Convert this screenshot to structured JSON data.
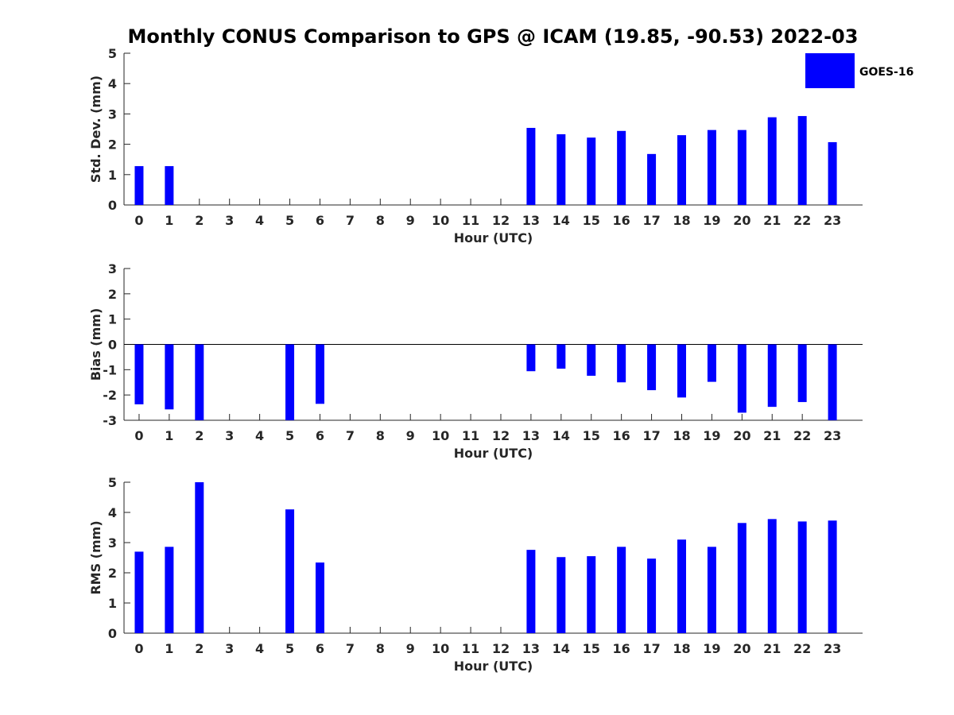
{
  "title": "Monthly CONUS Comparison to GPS @ ICAM (19.85, -90.53) 2022-03",
  "legend": {
    "label": "GOES-16",
    "color": "#0000ff",
    "placement": "top-right"
  },
  "chart_data": [
    {
      "type": "bar",
      "xlabel": "Hour (UTC)",
      "ylabel": "Std. Dev. (mm)",
      "ylim": [
        0,
        5
      ],
      "yticks": [
        "0",
        "1",
        "2",
        "3",
        "4",
        "5"
      ],
      "categories": [
        "0",
        "1",
        "2",
        "3",
        "4",
        "5",
        "6",
        "7",
        "8",
        "9",
        "10",
        "11",
        "12",
        "13",
        "14",
        "15",
        "16",
        "17",
        "18",
        "19",
        "20",
        "21",
        "22",
        "23"
      ],
      "series": [
        {
          "name": "GOES-16",
          "color": "#0000ff",
          "values": [
            1.28,
            1.28,
            null,
            null,
            null,
            null,
            null,
            null,
            null,
            null,
            null,
            null,
            null,
            2.54,
            2.33,
            2.22,
            2.44,
            1.68,
            2.3,
            2.47,
            2.47,
            2.89,
            2.93,
            2.07
          ]
        }
      ],
      "grid": false
    },
    {
      "type": "bar",
      "xlabel": "Hour (UTC)",
      "ylabel": "Bias (mm)",
      "ylim": [
        -3,
        3
      ],
      "yticks": [
        "-3",
        "-2",
        "-1",
        "0",
        "1",
        "2",
        "3"
      ],
      "zero_line": true,
      "categories": [
        "0",
        "1",
        "2",
        "3",
        "4",
        "5",
        "6",
        "7",
        "8",
        "9",
        "10",
        "11",
        "12",
        "13",
        "14",
        "15",
        "16",
        "17",
        "18",
        "19",
        "20",
        "21",
        "22",
        "23"
      ],
      "series": [
        {
          "name": "GOES-16",
          "color": "#0000ff",
          "values": [
            -2.37,
            -2.57,
            -3.0,
            null,
            null,
            -3.0,
            -2.35,
            null,
            null,
            null,
            null,
            null,
            null,
            -1.06,
            -0.96,
            -1.24,
            -1.5,
            -1.81,
            -2.1,
            -1.48,
            -2.7,
            -2.47,
            -2.28,
            -3.0
          ]
        }
      ],
      "grid": false
    },
    {
      "type": "bar",
      "xlabel": "Hour (UTC)",
      "ylabel": "RMS (mm)",
      "ylim": [
        0,
        5
      ],
      "yticks": [
        "0",
        "1",
        "2",
        "3",
        "4",
        "5"
      ],
      "categories": [
        "0",
        "1",
        "2",
        "3",
        "4",
        "5",
        "6",
        "7",
        "8",
        "9",
        "10",
        "11",
        "12",
        "13",
        "14",
        "15",
        "16",
        "17",
        "18",
        "19",
        "20",
        "21",
        "22",
        "23"
      ],
      "series": [
        {
          "name": "GOES-16",
          "color": "#0000ff",
          "values": [
            2.7,
            2.86,
            5.0,
            null,
            null,
            4.1,
            2.34,
            null,
            null,
            null,
            null,
            null,
            null,
            2.76,
            2.52,
            2.55,
            2.86,
            2.47,
            3.1,
            2.86,
            3.65,
            3.78,
            3.7,
            3.73
          ]
        }
      ],
      "grid": false
    }
  ]
}
